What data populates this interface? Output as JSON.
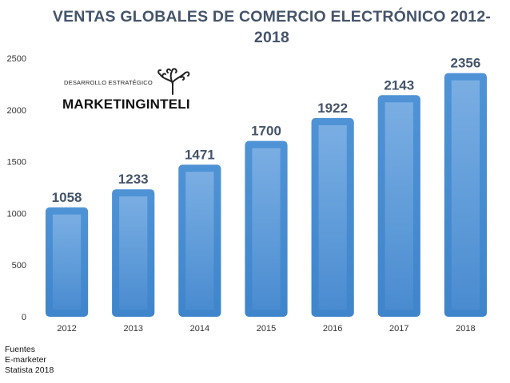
{
  "chart_data": {
    "type": "bar",
    "title_line1": "VENTAS GLOBALES DE COMERCIO ELECTRÓNICO  2012-",
    "title_line2": "2018",
    "categories": [
      "2012",
      "2013",
      "2014",
      "2015",
      "2016",
      "2017",
      "2018"
    ],
    "values": [
      1058,
      1233,
      1471,
      1700,
      1922,
      2143,
      2356
    ],
    "data_labels": [
      "1058",
      "1233",
      "1471",
      "1700",
      "1922",
      "2143",
      "2356"
    ],
    "y_ticks": [
      "0",
      "500",
      "1000",
      "1500",
      "2000",
      "2500"
    ],
    "ylim": [
      0,
      2500
    ],
    "grid": false,
    "bar_color": "#5b9bd5"
  },
  "logo": {
    "subtitle": "DESARROLLO ESTRATÉGICO",
    "brand": "MARKETINGINTELI",
    "icon": "tree-icon"
  },
  "sources": [
    "Fuentes",
    "E-marketer",
    "Statista 2018"
  ]
}
